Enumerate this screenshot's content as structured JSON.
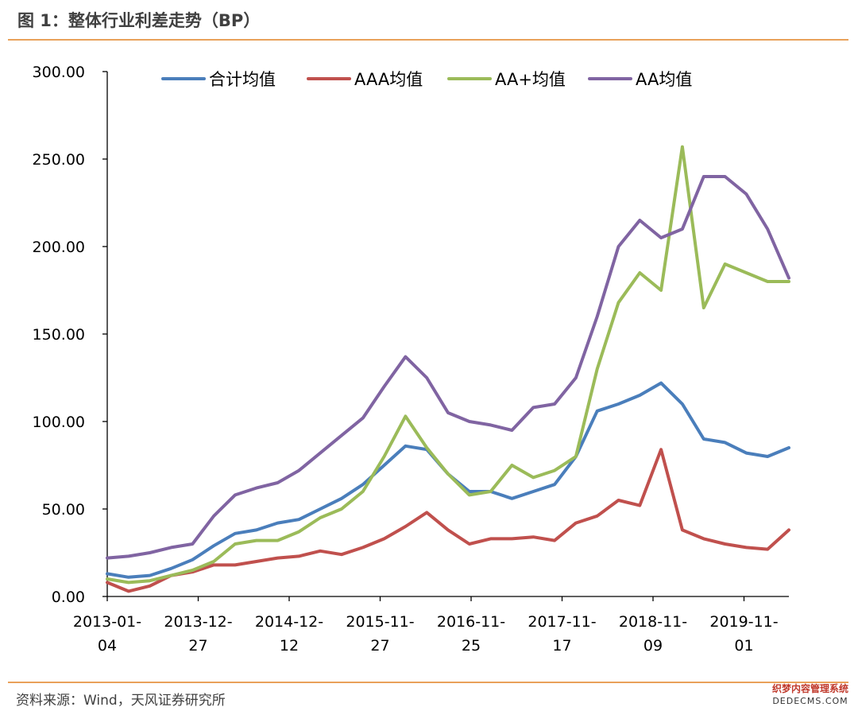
{
  "header": {
    "title": "图 1：整体行业利差走势（BP）"
  },
  "footer": {
    "source": "资料来源：Wind，天风证券研究所"
  },
  "watermark": {
    "line1": "织梦内容管理系统",
    "line2": "DEDECMS.COM"
  },
  "chart_data": {
    "type": "line",
    "title": "",
    "xlabel": "",
    "ylabel": "",
    "ylim": [
      0,
      300
    ],
    "y_ticks": [
      "0.00",
      "50.00",
      "100.00",
      "150.00",
      "200.00",
      "250.00",
      "300.00"
    ],
    "x_ticks": [
      {
        "line1": "2013-01-",
        "line2": "04"
      },
      {
        "line1": "2013-12-",
        "line2": "27"
      },
      {
        "line1": "2014-12-",
        "line2": "12"
      },
      {
        "line1": "2015-11-",
        "line2": "27"
      },
      {
        "line1": "2016-11-",
        "line2": "25"
      },
      {
        "line1": "2017-11-",
        "line2": "17"
      },
      {
        "line1": "2018-11-",
        "line2": "09"
      },
      {
        "line1": "2019-11-",
        "line2": "01"
      }
    ],
    "x": [
      "2013-01-04",
      "2013-04",
      "2013-07",
      "2013-10",
      "2013-12-27",
      "2014-03",
      "2014-06",
      "2014-09",
      "2014-12-12",
      "2015-03",
      "2015-06",
      "2015-09",
      "2015-11-27",
      "2016-02",
      "2016-04",
      "2016-06",
      "2016-08",
      "2016-11-25",
      "2017-02",
      "2017-05",
      "2017-08",
      "2017-11-17",
      "2018-02",
      "2018-05",
      "2018-08",
      "2018-11-09",
      "2019-02",
      "2019-04",
      "2019-06",
      "2019-08",
      "2019-11-01",
      "2020-01",
      "2020-04"
    ],
    "grid": false,
    "legend_position": "top",
    "series": [
      {
        "name": "合计均值",
        "color": "#4a7ebb",
        "values": [
          13,
          11,
          12,
          16,
          21,
          29,
          36,
          38,
          42,
          44,
          50,
          56,
          64,
          75,
          86,
          84,
          70,
          60,
          60,
          56,
          60,
          64,
          80,
          106,
          110,
          115,
          122,
          110,
          90,
          88,
          82,
          80,
          85
        ]
      },
      {
        "name": "AAA均值",
        "color": "#c0504d",
        "values": [
          8,
          3,
          6,
          12,
          14,
          18,
          18,
          20,
          22,
          23,
          26,
          24,
          28,
          33,
          40,
          48,
          38,
          30,
          33,
          33,
          34,
          32,
          42,
          46,
          55,
          52,
          84,
          38,
          33,
          30,
          28,
          27,
          38
        ]
      },
      {
        "name": "AA+均值",
        "color": "#9bbb59",
        "values": [
          10,
          8,
          9,
          12,
          15,
          20,
          30,
          32,
          32,
          37,
          45,
          50,
          60,
          80,
          103,
          85,
          70,
          58,
          60,
          75,
          68,
          72,
          80,
          130,
          168,
          185,
          175,
          257,
          165,
          190,
          185,
          180,
          180
        ]
      },
      {
        "name": "AA均值",
        "color": "#8064a2",
        "values": [
          22,
          23,
          25,
          28,
          30,
          46,
          58,
          62,
          65,
          72,
          82,
          92,
          102,
          120,
          137,
          125,
          105,
          100,
          98,
          95,
          108,
          110,
          125,
          160,
          200,
          215,
          205,
          210,
          240,
          240,
          230,
          210,
          182
        ]
      }
    ]
  }
}
